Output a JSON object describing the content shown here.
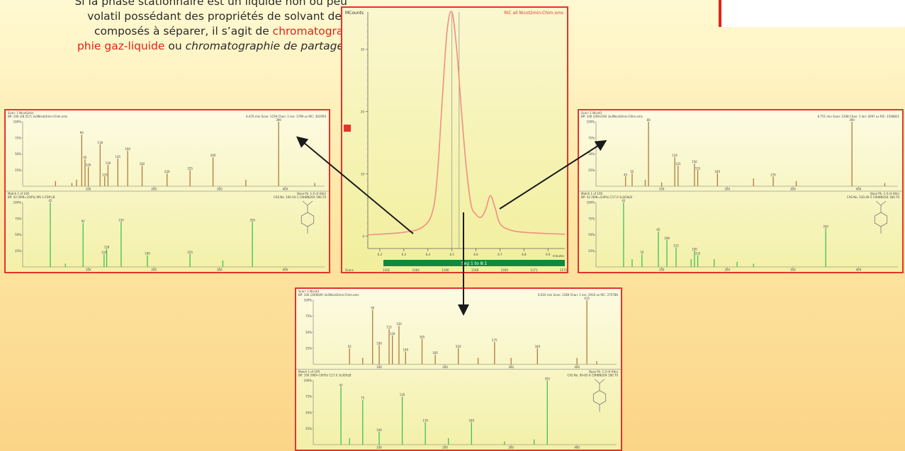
{
  "text": {
    "line1": "Si la phase stationnaire est un liquide non ou peu",
    "line2": "volatil possédant des propriétés de solvant des",
    "line3_a": "composés à séparer, il s’agit de ",
    "line3_b": "chromatogra-",
    "line4_a": "phie gaz-liquide",
    "line4_b": " ou ",
    "line4_c": "chromatographie de partage",
    "line4_d": "."
  },
  "chromatogram": {
    "ylabel": "MCounts",
    "legend": "RIC all Nicot2min:Chim.xms",
    "yticks": [
      "30",
      "20",
      "10",
      "0"
    ],
    "xticks": [
      "6.2",
      "6.3",
      "6.4",
      "6.5",
      "6.6",
      "6.7",
      "6.8",
      "6.9"
    ],
    "xunit": "minutes",
    "scans": [
      "1162",
      "1164",
      "1166",
      "1168",
      "1169",
      "1171",
      "1173"
    ],
    "scans_label": "Scans",
    "segment_label": "Seg 1 to 8:1",
    "colors": {
      "trace": "#ef8f83",
      "segment": "#0f8a3c"
    },
    "chart_data": {
      "type": "line",
      "x": [
        6.15,
        6.3,
        6.38,
        6.42,
        6.44,
        6.46,
        6.48,
        6.5,
        6.52,
        6.54,
        6.56,
        6.58,
        6.6,
        6.62,
        6.64,
        6.66,
        6.68,
        6.7,
        6.74,
        6.8,
        6.9,
        6.97
      ],
      "y": [
        0.2,
        0.6,
        1.5,
        4,
        10,
        22,
        33,
        36,
        30,
        20,
        11,
        5,
        3.5,
        3,
        4.2,
        6.5,
        4.5,
        2,
        1,
        0.6,
        0.4,
        0.3
      ],
      "xlim": [
        6.15,
        6.97
      ],
      "ylim": [
        -2,
        36
      ],
      "markers": [
        6.5,
        6.53
      ]
    }
  },
  "spectra": {
    "left": {
      "top_header_1": "Scan: 1 Nicot2min",
      "top_header_2": "BP: 100 (28.557) 3x3Nicot2min:Chim.xms",
      "top_header_right": "6.470 min Scan: 1159 Chan: 1 Ion: 1799 us RIC: 301959",
      "bottom_header_1": "Match 1 of 100",
      "bottom_header_2": "BP: 42 (999=100%) MS 1-FDP-LB",
      "bottom_header_right": "CAS No. 100-10-1 C9H8N2O4 180.70",
      "base_peak": "Base Pk: 1.0 (4 Hits)",
      "ylabels": [
        "100%",
        "75%",
        "50%",
        "25%"
      ],
      "xticks": [
        "100",
        "200",
        "300",
        "400"
      ],
      "chart_data": {
        "type": "bar",
        "top": {
          "x": [
            50,
            75,
            82,
            90,
            95,
            100,
            118,
            125,
            130,
            145,
            160,
            182,
            220,
            255,
            290,
            340,
            390,
            445
          ],
          "values": [
            8,
            5,
            10,
            80,
            42,
            30,
            65,
            15,
            33,
            43,
            55,
            32,
            20,
            25,
            45,
            10,
            100,
            5
          ]
        },
        "bottom": {
          "x": [
            42,
            65,
            92,
            124,
            128,
            150,
            190,
            255,
            305,
            350
          ],
          "values": [
            100,
            5,
            68,
            20,
            28,
            70,
            18,
            20,
            10,
            70
          ]
        }
      }
    },
    "right": {
      "top_header_1": "Scan: 1 Nicot3",
      "top_header_2": "BP: 100 (209.019) 3x3Nicot2min:Chim.xms",
      "top_header_right": "6.751 min Scan: 1208 Chan: 1 Ion: 2097 us RIC: 1548821",
      "bottom_header_1": "Match 1 of 100",
      "bottom_header_2": "BP: 42 (999=100%) C17.0 3x3G6LB",
      "bottom_header_right": "CAS No. 530-26-5 C9H8N2O4 180.70",
      "base_peak": "Base Pk: 1.0 (4 Hits)",
      "ylabels": [
        "100%",
        "75%",
        "50%",
        "25%"
      ],
      "xticks": [
        "100",
        "200",
        "300",
        "400"
      ],
      "chart_data": {
        "type": "bar",
        "top": {
          "x": [
            45,
            55,
            75,
            80,
            100,
            120,
            125,
            150,
            155,
            185,
            240,
            270,
            305,
            390,
            440
          ],
          "values": [
            15,
            20,
            10,
            100,
            6,
            45,
            32,
            35,
            25,
            20,
            12,
            15,
            8,
            100,
            5
          ]
        },
        "bottom": {
          "x": [
            42,
            55,
            70,
            95,
            108,
            122,
            145,
            150,
            155,
            180,
            215,
            240,
            350
          ],
          "values": [
            100,
            12,
            20,
            55,
            42,
            30,
            12,
            25,
            18,
            12,
            8,
            5,
            60
          ]
        }
      }
    },
    "bottom": {
      "top_header_1": "Scan: 1 Nicot3",
      "top_header_2": "BP: 100 (209009) 3x3Nicot2min:Chim.xms",
      "top_header_right": "6.610 min Scan: 1189 Chan: 1 Ion: 2910 us RIC: 275786",
      "bottom_header_1": "Match 1 of 100",
      "bottom_header_2": "BP: 100 (999=100%) C17.0 3x3G6LB",
      "bottom_header_right": "CAS No. 99-65-0 C9H8N2O4 180.70",
      "base_peak": "Base Pk: 1.0 (4 Hits)",
      "ylabels": [
        "100%",
        "75%",
        "50%",
        "25%"
      ],
      "xticks": [
        "100",
        "200",
        "300",
        "400"
      ],
      "chart_data": {
        "type": "bar",
        "top": {
          "x": [
            55,
            75,
            90,
            100,
            115,
            120,
            130,
            140,
            165,
            185,
            220,
            250,
            275,
            300,
            340,
            400,
            415,
            430
          ],
          "values": [
            25,
            10,
            85,
            30,
            55,
            45,
            60,
            20,
            40,
            15,
            25,
            10,
            35,
            10,
            25,
            10,
            100,
            5
          ]
        },
        "bottom": {
          "x": [
            42,
            55,
            75,
            100,
            135,
            170,
            205,
            240,
            290,
            335,
            355
          ],
          "values": [
            90,
            10,
            70,
            20,
            75,
            35,
            10,
            35,
            5,
            8,
            100
          ]
        }
      }
    }
  }
}
